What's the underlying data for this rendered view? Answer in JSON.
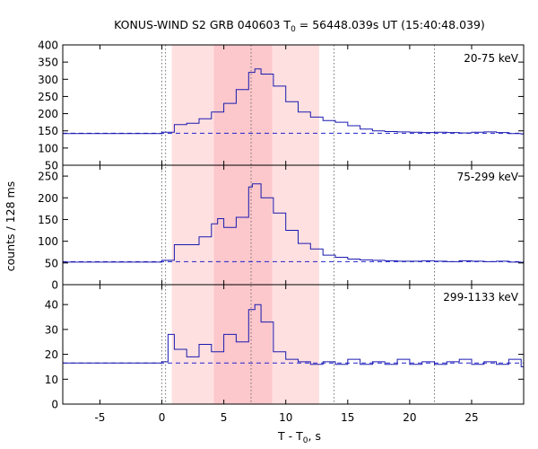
{
  "chart_data": {
    "type": "line",
    "title_main": "KONUS-WIND S2 GRB 040603 T",
    "title_sub": "0",
    "title_rest": " = 56448.039s UT (15:40:48.039)",
    "xlabel_main": "T - T",
    "xlabel_sub": "0",
    "xlabel_rest": ", s",
    "ylabel": "counts / 128 ms",
    "xlim": [
      -8,
      29.2
    ],
    "xticks": [
      -5,
      0,
      5,
      10,
      15,
      20,
      25
    ],
    "vlines": [
      0.0,
      0.3,
      7.2,
      13.9,
      22.0
    ],
    "shaded_regions": [
      {
        "from": 0.8,
        "to": 12.7,
        "color": "#ffe0e0"
      },
      {
        "from": 4.2,
        "to": 8.9,
        "color": "#fcc8cc"
      }
    ],
    "panels": [
      {
        "label": "20-75 keV",
        "ylim": [
          50,
          400
        ],
        "yticks": [
          50,
          100,
          150,
          200,
          250,
          300,
          350,
          400
        ],
        "background": 143,
        "x": [
          -8,
          0,
          1,
          2,
          3,
          4,
          5,
          6,
          7,
          7.5,
          8,
          9,
          10,
          11,
          12,
          13,
          14,
          15,
          16,
          17,
          18,
          19,
          20,
          21,
          22,
          23,
          24,
          25,
          26,
          27,
          28,
          29
        ],
        "y": [
          142,
          146,
          168,
          172,
          185,
          205,
          230,
          270,
          320,
          330,
          315,
          280,
          235,
          205,
          190,
          180,
          175,
          165,
          155,
          150,
          148,
          147,
          146,
          145,
          146,
          145,
          144,
          146,
          147,
          145,
          142,
          141
        ]
      },
      {
        "label": "75-299 keV",
        "ylim": [
          0,
          275
        ],
        "yticks": [
          0,
          50,
          100,
          150,
          200,
          250
        ],
        "background": 53,
        "x": [
          -8,
          0,
          1,
          2,
          3,
          4,
          4.5,
          5,
          6,
          7,
          7.3,
          8,
          9,
          10,
          11,
          12,
          13,
          14,
          15,
          16,
          17,
          18,
          19,
          20,
          21,
          22,
          23,
          24,
          25,
          26,
          27,
          28,
          29
        ],
        "y": [
          52,
          56,
          92,
          92,
          110,
          140,
          152,
          132,
          155,
          225,
          232,
          200,
          165,
          125,
          95,
          82,
          68,
          63,
          59,
          57,
          56,
          55,
          54,
          54,
          55,
          54,
          53,
          55,
          54,
          53,
          54,
          52,
          51
        ]
      },
      {
        "label": "299-1133 keV",
        "ylim": [
          0,
          48
        ],
        "yticks": [
          0,
          10,
          20,
          30,
          40
        ],
        "background": 16.5,
        "x": [
          -8,
          0,
          0.5,
          1,
          2,
          3,
          4,
          5,
          6,
          7,
          7.5,
          8,
          9,
          10,
          11,
          12,
          13,
          14,
          15,
          16,
          17,
          18,
          19,
          20,
          21,
          22,
          23,
          24,
          25,
          26,
          27,
          28,
          29
        ],
        "y": [
          16.5,
          17,
          28,
          22,
          19,
          24,
          21,
          28,
          25,
          38,
          40,
          33,
          21,
          18,
          17,
          16,
          17,
          16,
          18,
          16,
          17,
          16,
          18,
          16,
          17,
          16,
          17,
          18,
          16,
          17,
          16,
          18,
          15
        ]
      }
    ]
  }
}
